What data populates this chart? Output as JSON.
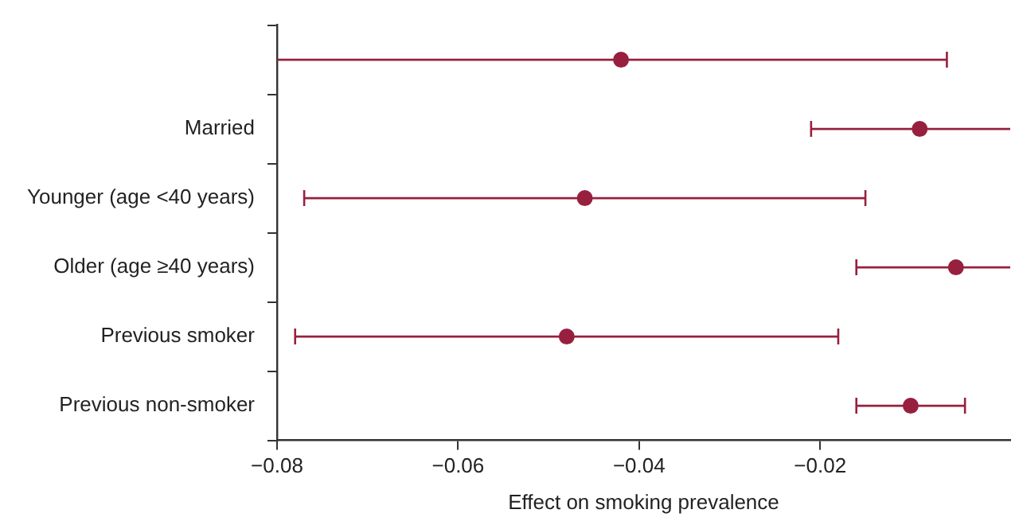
{
  "chart_data": {
    "type": "scatter",
    "orientation": "horizontal",
    "xlabel": "Effect on smoking prevalence",
    "categories": [
      null,
      "Married",
      "Younger (age <40 years)",
      "Older (age ≥40 years)",
      "Previous smoker",
      "Previous non-smoker"
    ],
    "values": [
      -0.042,
      -0.009,
      -0.046,
      -0.005,
      -0.048,
      -0.01
    ],
    "errors": [
      [
        -0.08,
        -0.006
      ],
      [
        -0.021,
        0.001
      ],
      [
        -0.077,
        -0.015
      ],
      [
        -0.016,
        0.001
      ],
      [
        -0.078,
        -0.018
      ],
      [
        -0.016,
        -0.004
      ]
    ],
    "color": "#98203f",
    "marker": "circle",
    "grid": false,
    "xlim": [
      -0.08,
      0.001
    ],
    "xticks": [
      {
        "value": -0.08,
        "label": "−0.08"
      },
      {
        "value": -0.06,
        "label": "−0.06"
      },
      {
        "value": -0.04,
        "label": "−0.04"
      },
      {
        "value": -0.02,
        "label": "−0.02"
      }
    ]
  }
}
